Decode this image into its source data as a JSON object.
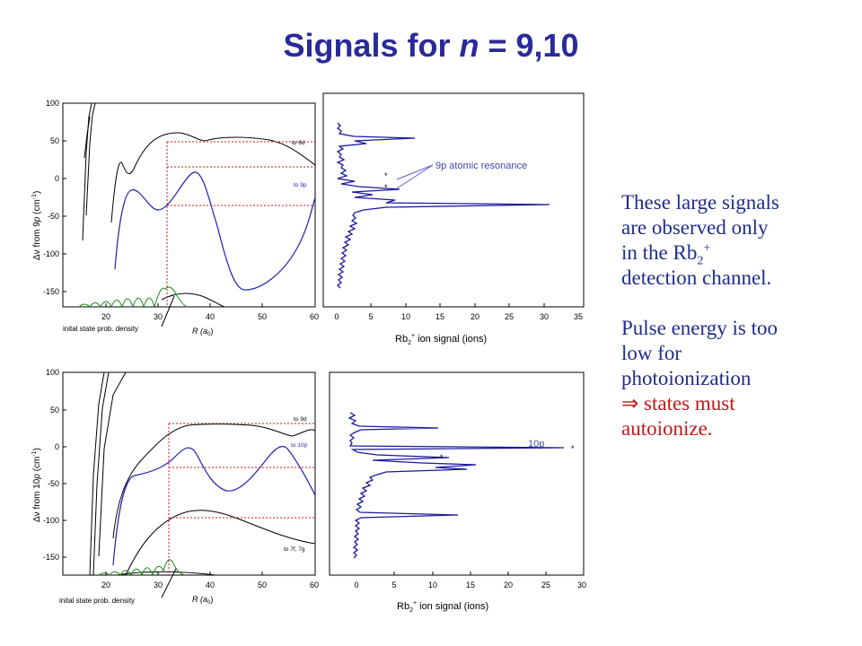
{
  "slide": {
    "title_prefix": "Signals for ",
    "title_n": "n",
    "title_suffix": " = 9,10"
  },
  "notes": {
    "line1": "These large signals",
    "line2": "are observed only",
    "line3_pre": "in the Rb",
    "line3_sub": "2",
    "line3_sup": "+",
    "line4": "detection channel.",
    "line5": "Pulse energy is too",
    "line6": "low for",
    "line7": "photoionization",
    "line8_symbol": "⇒",
    "line8": " states must",
    "line9": "autoionize."
  },
  "colors": {
    "title": "#2a2a9a",
    "text": "#1f2d8a",
    "emphasis": "#c01818",
    "signal": "#1a1a9a",
    "density": "#1a8a1a",
    "guide": "#d01818"
  },
  "panels": {
    "top_pot": {
      "ylabel_pre": "Δν from 9",
      "ylabel_it": "p",
      "ylabel_post": " (cm",
      "ylabel_sup": "-1",
      "ylabel_end": ")",
      "xticks": [
        "20",
        "30",
        "40",
        "50",
        "60"
      ],
      "yticks": [
        "100",
        "50",
        "0",
        "-50",
        "-100",
        "-150"
      ],
      "label_upper": "to 8d",
      "label_lower": "to 9p",
      "density_label": "inital state prob. density",
      "xlabel": "R (a",
      "xlabel_sub": "0",
      "xlabel_end": ")"
    },
    "top_sig": {
      "xticks": [
        "0",
        "5",
        "10",
        "15",
        "20",
        "25",
        "30",
        "35"
      ],
      "xlabel_pre": "Rb",
      "xlabel_sub": "2",
      "xlabel_sup": "+",
      "xlabel_post": " ion signal (ions)",
      "annotation": "9p atomic resonance",
      "star": "*"
    },
    "bot_pot": {
      "ylabel_pre": "Δν from 10",
      "ylabel_it": "p",
      "ylabel_post": " (cm",
      "ylabel_sup": "-1",
      "ylabel_end": ")",
      "xticks": [
        "20",
        "30",
        "40",
        "50",
        "60"
      ],
      "yticks": [
        "100",
        "50",
        "0",
        "-50",
        "-100",
        "-150"
      ],
      "label_upper": "to 9d",
      "label_mid": "to 10p",
      "label_lower": "to 7f, 7g",
      "density_label": "inital state prob. density",
      "xlabel": "R (a",
      "xlabel_sub": "0",
      "xlabel_end": ")"
    },
    "bot_sig": {
      "xticks": [
        "0",
        "5",
        "10",
        "15",
        "20",
        "25",
        "30"
      ],
      "xlabel_pre": "Rb",
      "xlabel_sub": "2",
      "xlabel_sup": "+",
      "xlabel_post": " ion signal (ions)",
      "annotation": "10p",
      "star": "*"
    }
  },
  "chart_data": [
    {
      "type": "line",
      "xlabel": "R (a0)",
      "ylabel": "Δν from 9p (cm-1)",
      "xlim": [
        10,
        60
      ],
      "ylim": [
        -175,
        100
      ],
      "series": [
        {
          "name": "to 8d",
          "values": [
            [
              23,
              20
            ],
            [
              25,
              12
            ],
            [
              28,
              40
            ],
            [
              32,
              60
            ],
            [
              36,
              55
            ],
            [
              42,
              52
            ],
            [
              50,
              52
            ],
            [
              56,
              45
            ],
            [
              60,
              38
            ]
          ]
        },
        {
          "name": "to 9p",
          "values": [
            [
              22,
              -25
            ],
            [
              24,
              -15
            ],
            [
              28,
              -30
            ],
            [
              32,
              -38
            ],
            [
              36,
              0
            ],
            [
              38,
              10
            ],
            [
              42,
              -60
            ],
            [
              46,
              -150
            ],
            [
              52,
              -140
            ],
            [
              56,
              -110
            ],
            [
              60,
              -50
            ]
          ]
        }
      ],
      "annotations": [
        "to 8d",
        "to 9p",
        "inital state prob. density"
      ]
    },
    {
      "type": "line",
      "xlabel": "Rb2+ ion signal (ions)",
      "xlim": [
        0,
        35
      ],
      "series": [
        {
          "name": "",
          "peaks": [
            [
              11,
              53
            ],
            [
              8,
              -5
            ],
            [
              31,
              -35
            ],
            [
              2,
              -80
            ],
            [
              2,
              -110
            ]
          ]
        }
      ],
      "annotations": [
        "9p atomic resonance"
      ]
    },
    {
      "type": "line",
      "xlabel": "R (a0)",
      "ylabel": "Δν from 10p (cm-1)",
      "xlim": [
        10,
        60
      ],
      "ylim": [
        -175,
        100
      ],
      "series": [
        {
          "name": "to 9d",
          "values": [
            [
              26,
              -20
            ],
            [
              30,
              -5
            ],
            [
              34,
              30
            ],
            [
              40,
              32
            ],
            [
              46,
              28
            ],
            [
              52,
              22
            ],
            [
              56,
              20
            ],
            [
              60,
              15
            ]
          ]
        },
        {
          "name": "to 10p",
          "values": [
            [
              24,
              -40
            ],
            [
              28,
              -25
            ],
            [
              32,
              -15
            ],
            [
              36,
              0
            ],
            [
              40,
              -35
            ],
            [
              44,
              -60
            ],
            [
              48,
              -45
            ],
            [
              52,
              -10
            ],
            [
              55,
              0
            ],
            [
              58,
              -20
            ],
            [
              60,
              -60
            ]
          ]
        },
        {
          "name": "to 7f, 7g",
          "values": [
            [
              24,
              -125
            ],
            [
              30,
              -100
            ],
            [
              34,
              -88
            ],
            [
              40,
              -90
            ],
            [
              48,
              -110
            ],
            [
              56,
              -125
            ],
            [
              60,
              -130
            ]
          ]
        }
      ],
      "annotations": [
        "to 9d",
        "to 10p",
        "to 7f, 7g",
        "inital state prob. density"
      ]
    },
    {
      "type": "line",
      "xlabel": "Rb2+ ion signal (ions)",
      "xlim": [
        0,
        30
      ],
      "series": [
        {
          "name": "",
          "peaks": [
            [
              11,
              35
            ],
            [
              28,
              0
            ],
            [
              12,
              -5
            ],
            [
              16,
              -25
            ],
            [
              13,
              -93
            ]
          ]
        }
      ],
      "annotations": [
        "10p"
      ]
    }
  ]
}
